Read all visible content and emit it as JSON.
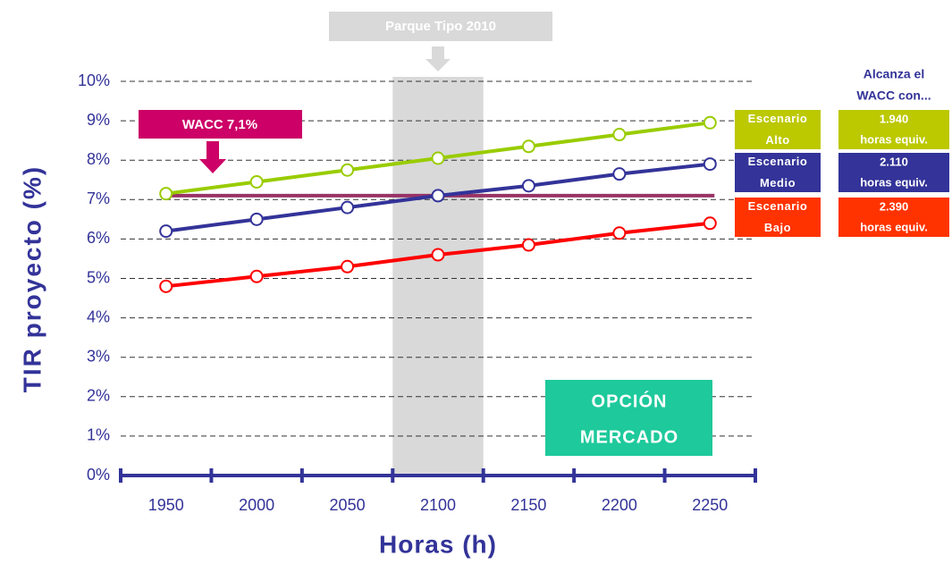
{
  "chart_data": {
    "type": "line",
    "categories": [
      "1950",
      "2000",
      "2050",
      "2100",
      "2150",
      "2200",
      "2250"
    ],
    "xlabel": "Horas (h)",
    "ylabel": "TIR proyecto (%)",
    "ylim": [
      0,
      10
    ],
    "yticks": [
      {
        "value": 0,
        "label": "0%"
      },
      {
        "value": 1,
        "label": "1%"
      },
      {
        "value": 2,
        "label": "2%"
      },
      {
        "value": 3,
        "label": "3%"
      },
      {
        "value": 4,
        "label": "4%"
      },
      {
        "value": 5,
        "label": "5%"
      },
      {
        "value": 6,
        "label": "6%"
      },
      {
        "value": 7,
        "label": "7%"
      },
      {
        "value": 8,
        "label": "8%"
      },
      {
        "value": 9,
        "label": "9%"
      },
      {
        "value": 10,
        "label": "10%"
      }
    ],
    "grid": true,
    "series": [
      {
        "name": "Escenario Alto",
        "color": "#99cc00",
        "box_color": "#bcc800",
        "values": [
          7.15,
          7.45,
          7.75,
          8.05,
          8.35,
          8.65,
          8.95
        ],
        "reach": [
          "1.940",
          "horas equiv."
        ]
      },
      {
        "name": "Escenario Medio",
        "color": "#333399",
        "box_color": "#333399",
        "values": [
          6.2,
          6.5,
          6.8,
          7.1,
          7.35,
          7.65,
          7.9
        ],
        "reach": [
          "2.110",
          "horas equiv."
        ]
      },
      {
        "name": "Escenario Bajo",
        "color": "#ff0000",
        "box_color": "#ff3300",
        "values": [
          4.8,
          5.05,
          5.3,
          5.6,
          5.85,
          6.15,
          6.4
        ],
        "reach": [
          "2.390",
          "horas equiv."
        ]
      }
    ],
    "reach_title": [
      "Alcanza el",
      "WACC con..."
    ],
    "reference_line": {
      "label": "WACC 7,1%",
      "value": 7.1,
      "color": "#993366",
      "box_color": "#cc0066"
    },
    "highlight": {
      "label": "Parque Tipo 2010",
      "category": "2100"
    },
    "annotation": {
      "lines": [
        "OPCIÓN",
        "MERCADO"
      ],
      "color": "#1ec99b"
    }
  }
}
